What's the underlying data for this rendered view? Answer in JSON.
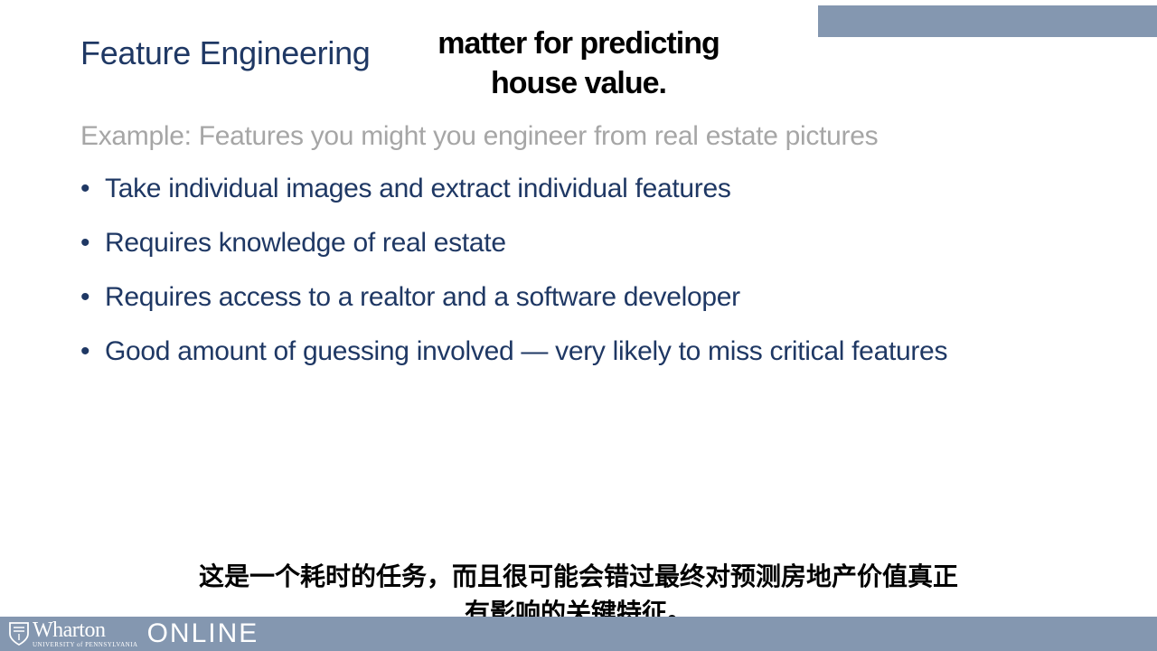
{
  "slide": {
    "title": "Feature Engineering",
    "example": "Example: Features you might you engineer from real estate pictures",
    "bullets": [
      "Take individual images and extract individual features",
      "Requires knowledge of real estate",
      "Requires access to a realtor and a software developer",
      "Good amount of guessing involved — very likely to miss critical features"
    ],
    "bullet_symbol": "•"
  },
  "captions": {
    "english_line1": "matter for predicting",
    "english_line2": "house value.",
    "chinese_line1": "这是一个耗时的任务，而且很可能会错过最终对预测房地产价值真正",
    "chinese_line2": "有影响的关键特征。"
  },
  "footer": {
    "brand": "Wharton",
    "university": "UNIVERSITY of PENNSYLVANIA",
    "online": "ONLINE"
  },
  "colors": {
    "accent": "#8497b0",
    "title": "#1f3864",
    "muted": "#a6a6a6"
  }
}
